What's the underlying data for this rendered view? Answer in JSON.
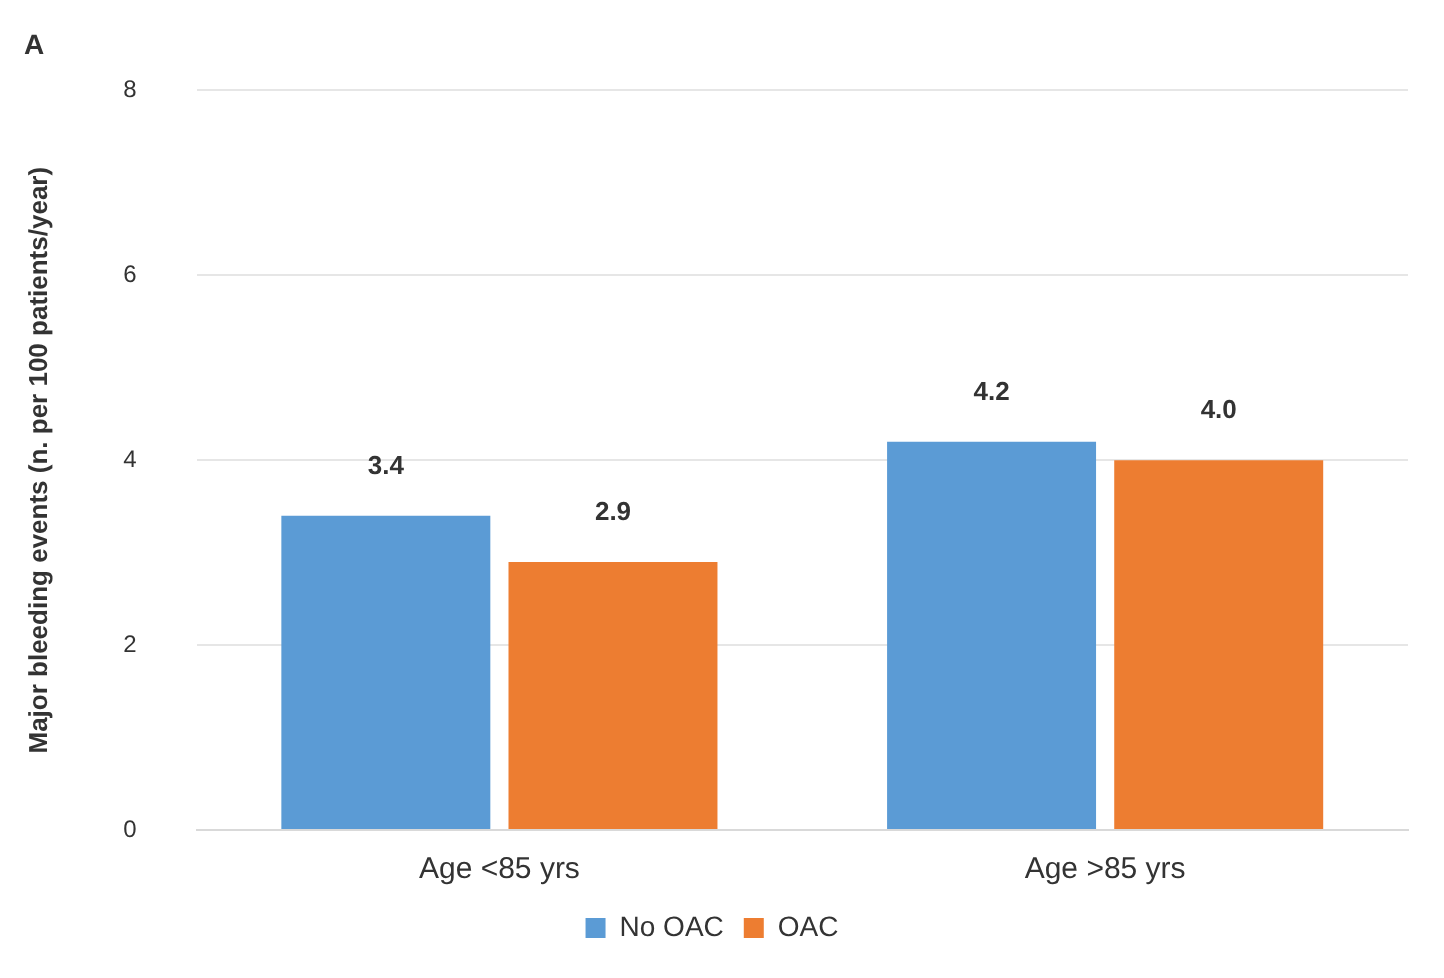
{
  "chart_data": {
    "type": "bar",
    "ylabel": "Major bleeding events (n. per 100 patients/year)",
    "annotations": [
      "A"
    ],
    "categories": [
      "Age <85 yrs",
      "Age >85 yrs"
    ],
    "series": [
      {
        "name": "No OAC",
        "color": "#5b9bd5",
        "values": [
          3.4,
          4.2
        ],
        "value_labels": [
          "3.4",
          "4.2"
        ]
      },
      {
        "name": "OAC",
        "color": "#ed7d31",
        "values": [
          2.9,
          4.0
        ],
        "value_labels": [
          "2.9",
          "4.0"
        ]
      }
    ],
    "ylim": [
      0,
      8
    ],
    "yticks": [
      0,
      2,
      4,
      6,
      8
    ],
    "grid": "y",
    "legend": "bottom"
  }
}
